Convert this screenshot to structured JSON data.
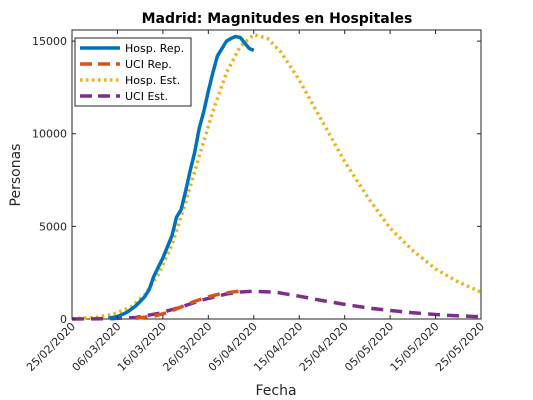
{
  "chart_data": {
    "type": "line",
    "title": "Madrid: Magnitudes en Hospitales",
    "xlabel": "Fecha",
    "ylabel": "Personas",
    "xlim": [
      "2020-02-25",
      "2020-05-25"
    ],
    "ylim": [
      0,
      15600
    ],
    "x_ticks": [
      "2020-02-25",
      "2020-03-06",
      "2020-03-16",
      "2020-03-26",
      "2020-04-05",
      "2020-04-15",
      "2020-04-25",
      "2020-05-05",
      "2020-05-15",
      "2020-05-25"
    ],
    "x_tick_labels": [
      "25/02/2020",
      "06/03/2020",
      "16/03/2020",
      "26/03/2020",
      "05/04/2020",
      "15/04/2020",
      "25/04/2020",
      "05/05/2020",
      "15/05/2020",
      "25/05/2020"
    ],
    "y_ticks": [
      0,
      5000,
      10000,
      15000
    ],
    "y_tick_labels": [
      "0",
      "5000",
      "10000",
      "15000"
    ],
    "grid": false,
    "legend_position": "top-left",
    "series": [
      {
        "name": "Hosp. Rep.",
        "color": "#0072BD",
        "style": "solid",
        "points": [
          [
            "2020-03-04",
            50
          ],
          [
            "2020-03-06",
            130
          ],
          [
            "2020-03-08",
            350
          ],
          [
            "2020-03-10",
            700
          ],
          [
            "2020-03-12",
            1200
          ],
          [
            "2020-03-13",
            1600
          ],
          [
            "2020-03-14",
            2300
          ],
          [
            "2020-03-16",
            3300
          ],
          [
            "2020-03-18",
            4500
          ],
          [
            "2020-03-19",
            5500
          ],
          [
            "2020-03-20",
            5900
          ],
          [
            "2020-03-21",
            6900
          ],
          [
            "2020-03-22",
            8000
          ],
          [
            "2020-03-23",
            9000
          ],
          [
            "2020-03-24",
            10300
          ],
          [
            "2020-03-25",
            11200
          ],
          [
            "2020-03-26",
            12300
          ],
          [
            "2020-03-27",
            13300
          ],
          [
            "2020-03-28",
            14200
          ],
          [
            "2020-03-29",
            14600
          ],
          [
            "2020-03-30",
            15000
          ],
          [
            "2020-03-31",
            15150
          ],
          [
            "2020-04-01",
            15250
          ],
          [
            "2020-04-02",
            15200
          ],
          [
            "2020-04-03",
            14900
          ],
          [
            "2020-04-04",
            14600
          ],
          [
            "2020-04-05",
            14500
          ]
        ]
      },
      {
        "name": "UCI Rep.",
        "color": "#D95319",
        "style": "dashed",
        "points": [
          [
            "2020-03-10",
            40
          ],
          [
            "2020-03-14",
            150
          ],
          [
            "2020-03-17",
            350
          ],
          [
            "2020-03-20",
            650
          ],
          [
            "2020-03-23",
            950
          ],
          [
            "2020-03-26",
            1200
          ],
          [
            "2020-03-29",
            1380
          ],
          [
            "2020-04-01",
            1480
          ],
          [
            "2020-04-03",
            1520
          ]
        ]
      },
      {
        "name": "Hosp. Est.",
        "color": "#EDB120",
        "style": "dotted",
        "points": [
          [
            "2020-02-25",
            20
          ],
          [
            "2020-03-01",
            80
          ],
          [
            "2020-03-05",
            250
          ],
          [
            "2020-03-09",
            650
          ],
          [
            "2020-03-12",
            1300
          ],
          [
            "2020-03-15",
            2400
          ],
          [
            "2020-03-18",
            4000
          ],
          [
            "2020-03-21",
            6300
          ],
          [
            "2020-03-24",
            8800
          ],
          [
            "2020-03-27",
            11200
          ],
          [
            "2020-03-30",
            13300
          ],
          [
            "2020-04-02",
            14700
          ],
          [
            "2020-04-05",
            15350
          ],
          [
            "2020-04-08",
            15150
          ],
          [
            "2020-04-11",
            14400
          ],
          [
            "2020-04-15",
            12900
          ],
          [
            "2020-04-20",
            10700
          ],
          [
            "2020-04-25",
            8500
          ],
          [
            "2020-04-30",
            6600
          ],
          [
            "2020-05-05",
            4900
          ],
          [
            "2020-05-10",
            3700
          ],
          [
            "2020-05-15",
            2700
          ],
          [
            "2020-05-20",
            2000
          ],
          [
            "2020-05-25",
            1450
          ]
        ]
      },
      {
        "name": "UCI Est.",
        "color": "#7E2F8E",
        "style": "dashed",
        "points": [
          [
            "2020-02-25",
            0
          ],
          [
            "2020-03-05",
            20
          ],
          [
            "2020-03-10",
            80
          ],
          [
            "2020-03-15",
            300
          ],
          [
            "2020-03-20",
            650
          ],
          [
            "2020-03-25",
            1050
          ],
          [
            "2020-03-30",
            1350
          ],
          [
            "2020-04-02",
            1460
          ],
          [
            "2020-04-05",
            1500
          ],
          [
            "2020-04-10",
            1440
          ],
          [
            "2020-04-15",
            1230
          ],
          [
            "2020-04-20",
            1000
          ],
          [
            "2020-04-25",
            790
          ],
          [
            "2020-04-30",
            600
          ],
          [
            "2020-05-05",
            460
          ],
          [
            "2020-05-10",
            340
          ],
          [
            "2020-05-15",
            240
          ],
          [
            "2020-05-20",
            170
          ],
          [
            "2020-05-25",
            120
          ]
        ]
      }
    ]
  }
}
